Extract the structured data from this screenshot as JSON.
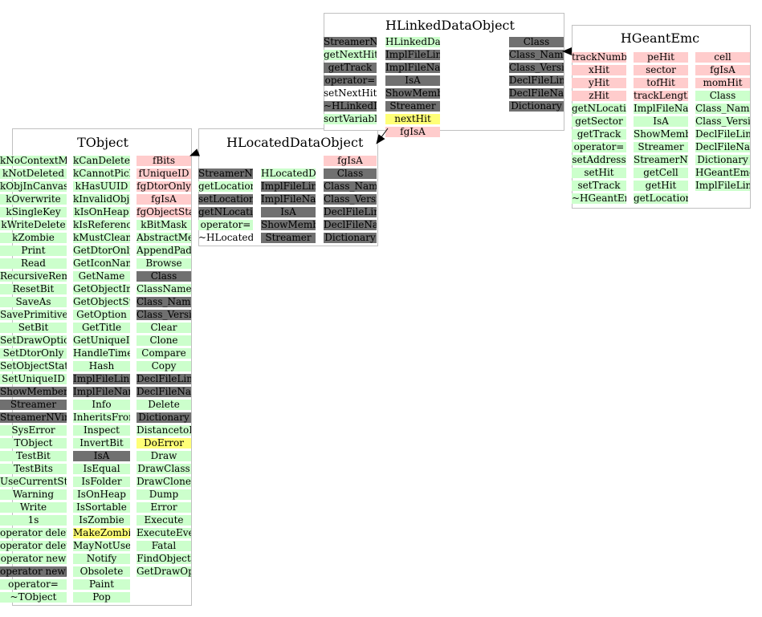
{
  "colors": {
    "method": "#ccffcc",
    "data_member": "#ffcccc",
    "inherited": "#707070",
    "highlight": "#ffff77",
    "border": "#c0c0c0"
  },
  "classes": [
    {
      "id": "tobject",
      "title": "TObject",
      "columns": [
        [
          "kNoContextMenu",
          "kNotDeleted",
          "kObjInCanvas",
          "kOverwrite",
          "kSingleKey",
          "kWriteDelete",
          "kZombie",
          "Print",
          "Read",
          "RecursiveRemove",
          "ResetBit",
          "SaveAs",
          "SavePrimitive",
          "SetBit",
          "SetDrawOption",
          "SetDtorOnly",
          "SetObjectStat",
          "SetUniqueID",
          "ShowMembers",
          "Streamer",
          "StreamerNVirtual",
          "SysError",
          "TObject",
          "TestBit",
          "TestBits",
          "UseCurrentStyle",
          "Warning",
          "Write",
          "1s",
          "operator delete",
          "operator delete[]",
          "operator new",
          "operator new[]",
          "operator=",
          "~TObject"
        ],
        [
          "kCanDelete",
          "kCannotPick",
          "kHasUUID",
          "kInvalidObject",
          "kIsOnHeap",
          "kIsReferenced",
          "kMustCleanup",
          "GetDtorOnly",
          "GetIconName",
          "GetName",
          "GetObjectInfo",
          "GetObjectStat",
          "GetOption",
          "GetTitle",
          "GetUniqueID",
          "HandleTimer",
          "Hash",
          "ImplFileLine",
          "ImplFileName",
          "Info",
          "InheritsFrom",
          "Inspect",
          "InvertBit",
          "IsA",
          "IsEqual",
          "IsFolder",
          "IsOnHeap",
          "IsSortable",
          "IsZombie",
          "MakeZombie",
          "MayNotUse",
          "Notify",
          "Obsolete",
          "Paint",
          "Pop"
        ],
        [
          "fBits",
          "fUniqueID",
          "fgDtorOnly",
          "fgIsA",
          "fgObjectStat",
          "kBitMask",
          "AbstractMethod",
          "AppendPad",
          "Browse",
          "Class",
          "ClassName",
          "Class_Name",
          "Class_Version",
          "Clear",
          "Clone",
          "Compare",
          "Copy",
          "DeclFileLine",
          "DeclFileName",
          "Delete",
          "Dictionary",
          "DistancetoPrimitive",
          "DoError",
          "Draw",
          "DrawClass",
          "DrawClone",
          "Dump",
          "Error",
          "Execute",
          "ExecuteEvent",
          "Fatal",
          "FindObject",
          "GetDrawOption"
        ]
      ]
    },
    {
      "id": "hlocated",
      "title": "HLocatedDataObject",
      "columns": [
        [
          "StreamerNVirtual",
          "getLocation",
          "setLocationIndex",
          "getNLocationIndex",
          "operator=",
          "~HLocatedDataObject"
        ],
        [
          "HLocatedDataObject",
          "ImplFileLine",
          "ImplFileName",
          "IsA",
          "ShowMembers",
          "Streamer"
        ],
        [
          "fgIsA",
          "Class",
          "Class_Name",
          "Class_Version",
          "DeclFileLine",
          "DeclFileName",
          "Dictionary"
        ]
      ]
    },
    {
      "id": "hlinked",
      "title": "HLinkedDataObject",
      "columns": [
        [
          "StreamerNVirtual",
          "getNextHitIndex",
          "getTrack",
          "operator=",
          "setNextHitIndex",
          "~HLinkedDataObject",
          "sortVariable"
        ],
        [
          "HLinkedDataObject",
          "ImplFileLine",
          "ImplFileName",
          "IsA",
          "ShowMembers",
          "Streamer",
          "nextHit",
          "fgIsA"
        ],
        [
          "Class",
          "Class_Name",
          "Class_Version",
          "DeclFileLine",
          "DeclFileName",
          "Dictionary"
        ]
      ]
    },
    {
      "id": "hgeant",
      "title": "HGeantEmc",
      "columns": [
        [
          "trackNumber",
          "xHit",
          "yHit",
          "zHit",
          "getNLocationIndex",
          "getSector",
          "getTrack",
          "operator=",
          "setAddress",
          "setHit",
          "setTrack",
          "~HGeantEmc"
        ],
        [
          "peHit",
          "sector",
          "tofHit",
          "trackLength",
          "ImplFileName",
          "IsA",
          "ShowMembers",
          "Streamer",
          "StreamerNVirtual",
          "getCell",
          "getHit",
          "getLocationIndex"
        ],
        [
          "cell",
          "fgIsA",
          "momHit",
          "Class",
          "Class_Name",
          "Class_Version",
          "DeclFileLine",
          "DeclFileName",
          "Dictionary",
          "HGeantEmc",
          "ImplFileLine"
        ]
      ]
    }
  ]
}
